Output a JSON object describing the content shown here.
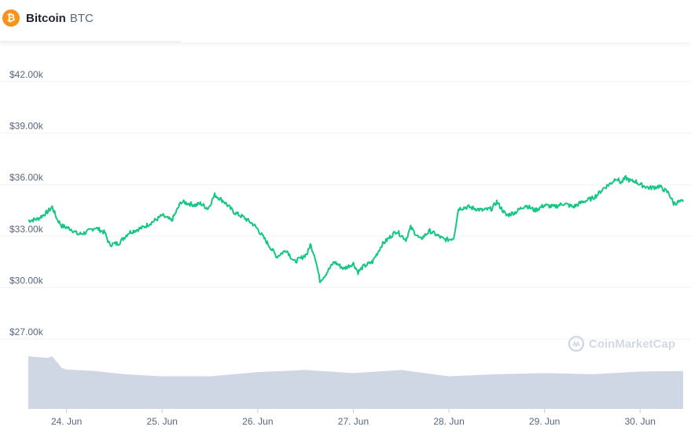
{
  "header": {
    "coin_name": "Bitcoin",
    "coin_symbol": "BTC",
    "coin_icon": "bitcoin-icon",
    "coin_icon_glyph": "₿",
    "coin_color": "#f7931a"
  },
  "watermark": {
    "text": "CoinMarketCap",
    "icon": "coinmarketcap-logo-icon"
  },
  "chart_data": {
    "type": "line",
    "title": "",
    "xlabel": "",
    "ylabel": "",
    "x_ticks": [
      "24. Jun",
      "25. Jun",
      "26. Jun",
      "27. Jun",
      "28. Jun",
      "29. Jun",
      "30. Jun"
    ],
    "y_ticks": [
      {
        "value": 27000,
        "label": "$27.00k"
      },
      {
        "value": 30000,
        "label": "$30.00k"
      },
      {
        "value": 33000,
        "label": "$33.00k"
      },
      {
        "value": 36000,
        "label": "$36.00k"
      },
      {
        "value": 39000,
        "label": "$39.00k"
      },
      {
        "value": 42000,
        "label": "$42.00k"
      }
    ],
    "ylim": [
      27000,
      42000
    ],
    "xlim": [
      23.6,
      30.45
    ],
    "grid": true,
    "line_color": "#16c784",
    "volume_color": "#cfd6e4",
    "series": [
      {
        "x": [
          23.6,
          23.7,
          23.8,
          23.85,
          23.9,
          23.95,
          24.05,
          24.12,
          24.2,
          24.3,
          24.4,
          24.45,
          24.55,
          24.65,
          24.8,
          24.95,
          25.0,
          25.1,
          25.2,
          25.35,
          25.4,
          25.48,
          25.55,
          25.65,
          25.75,
          25.85,
          25.95,
          26.0,
          26.1,
          26.2,
          26.3,
          26.38,
          26.45,
          26.52,
          26.55,
          26.6,
          26.65,
          26.7,
          26.8,
          26.9,
          27.0,
          27.05,
          27.1,
          27.2,
          27.3,
          27.45,
          27.55,
          27.6,
          27.7,
          27.8,
          27.95,
          28.0,
          28.05,
          28.1,
          28.2,
          28.35,
          28.45,
          28.5,
          28.6,
          28.7,
          28.8,
          28.9,
          29.0,
          29.1,
          29.2,
          29.3,
          29.4,
          29.5,
          29.55,
          29.62,
          29.7,
          29.75,
          29.8,
          29.85,
          29.9,
          29.95,
          30.0,
          30.1,
          30.2,
          30.3,
          30.35,
          30.42,
          30.45
        ],
        "values": [
          33900,
          34000,
          34400,
          34700,
          34000,
          33600,
          33400,
          33100,
          33200,
          33500,
          33200,
          32500,
          32600,
          33200,
          33500,
          34000,
          34200,
          33900,
          35000,
          34800,
          34900,
          34600,
          35400,
          35000,
          34400,
          34100,
          33700,
          33400,
          32600,
          31800,
          32200,
          31500,
          31700,
          32000,
          32500,
          31800,
          30400,
          30700,
          31500,
          31100,
          31400,
          30900,
          31200,
          31500,
          32500,
          33300,
          32800,
          33500,
          32800,
          33300,
          32800,
          32800,
          32900,
          34600,
          34700,
          34500,
          34600,
          35000,
          34200,
          34400,
          34800,
          34500,
          34800,
          34700,
          34900,
          34700,
          35000,
          35200,
          35400,
          35800,
          36100,
          36400,
          36100,
          36400,
          36200,
          36200,
          36000,
          35800,
          35900,
          35500,
          34900,
          35000,
          35000
        ]
      }
    ],
    "volume": {
      "x": [
        23.6,
        23.8,
        23.85,
        23.95,
        24.0,
        24.3,
        24.6,
        25.0,
        25.5,
        26.0,
        26.5,
        27.0,
        27.5,
        28.0,
        28.5,
        29.0,
        29.5,
        30.0,
        30.45
      ],
      "values": [
        1.0,
        0.97,
        1.0,
        0.78,
        0.75,
        0.72,
        0.66,
        0.62,
        0.62,
        0.7,
        0.74,
        0.68,
        0.74,
        0.62,
        0.66,
        0.68,
        0.66,
        0.71,
        0.72
      ]
    }
  }
}
